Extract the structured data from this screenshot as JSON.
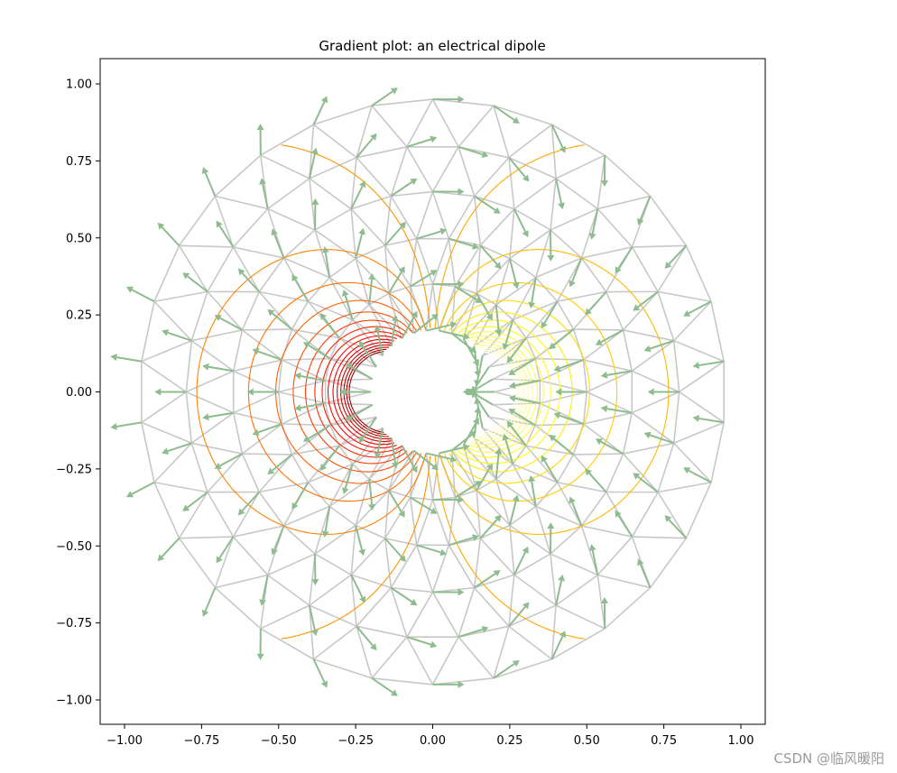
{
  "chart_data": {
    "type": "contour+quiver",
    "title": "Gradient plot: an electrical dipole",
    "xlabel": "",
    "ylabel": "",
    "xlim": [
      -1.07,
      1.07
    ],
    "ylim": [
      -1.08,
      1.08
    ],
    "x_ticks": [
      "−1.00",
      "−0.75",
      "−0.50",
      "−0.25",
      "0.00",
      "0.25",
      "0.50",
      "0.75",
      "1.00"
    ],
    "x_tick_values": [
      -1.0,
      -0.75,
      -0.5,
      -0.25,
      0.0,
      0.25,
      0.5,
      0.75,
      1.0
    ],
    "y_ticks": [
      "1.00",
      "0.75",
      "0.50",
      "0.25",
      "0.00",
      "−0.25",
      "−0.50",
      "−0.75",
      "−1.00"
    ],
    "y_tick_values": [
      1.0,
      0.75,
      0.5,
      0.25,
      0.0,
      -0.25,
      -0.5,
      -0.75,
      -1.0
    ],
    "mesh": {
      "min_radius": 0.2,
      "max_radius": 0.95,
      "n_radii": 6,
      "n_angles": 30,
      "color": "#c8c8c8"
    },
    "dipole": {
      "charges": [
        {
          "x": -0.12,
          "y": 0.0,
          "q": 1.0
        },
        {
          "x": 0.12,
          "y": 0.0,
          "q": -1.0
        }
      ]
    },
    "contour_levels": 30,
    "colormap": "hot",
    "grid": false,
    "legend": "none",
    "arrow_color": "#8fbc8f"
  },
  "watermark": "CSDN @临风暖阳"
}
